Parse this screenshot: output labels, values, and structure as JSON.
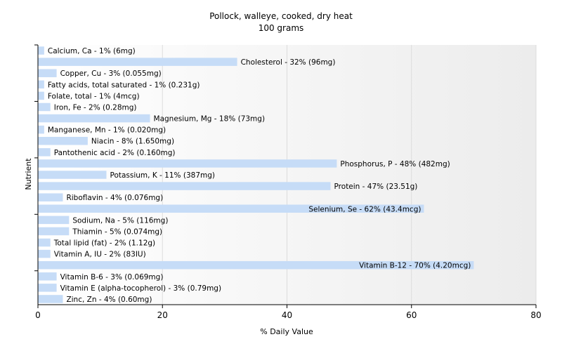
{
  "chart_data": {
    "type": "bar",
    "orientation": "horizontal",
    "title": "Pollock, walleye, cooked, dry heat",
    "subtitle": "100 grams",
    "xlabel": "% Daily Value",
    "ylabel": "Nutrient",
    "xlim": [
      0,
      80
    ],
    "xticks": [
      0,
      20,
      40,
      60,
      80
    ],
    "grid": true,
    "bar_color": "#c6dcf7",
    "categories": [
      "Calcium, Ca",
      "Cholesterol",
      "Copper, Cu",
      "Fatty acids, total saturated",
      "Folate, total",
      "Iron, Fe",
      "Magnesium, Mg",
      "Manganese, Mn",
      "Niacin",
      "Pantothenic acid",
      "Phosphorus, P",
      "Potassium, K",
      "Protein",
      "Riboflavin",
      "Selenium, Se",
      "Sodium, Na",
      "Thiamin",
      "Total lipid (fat)",
      "Vitamin A, IU",
      "Vitamin B-12",
      "Vitamin B-6",
      "Vitamin E (alpha-tocopherol)",
      "Zinc, Zn"
    ],
    "values": [
      1,
      32,
      3,
      1,
      1,
      2,
      18,
      1,
      8,
      2,
      48,
      11,
      47,
      4,
      62,
      5,
      5,
      2,
      2,
      70,
      3,
      3,
      4
    ],
    "labels": [
      "Calcium, Ca - 1% (6mg)",
      "Cholesterol - 32% (96mg)",
      "Copper, Cu - 3% (0.055mg)",
      "Fatty acids, total saturated - 1% (0.231g)",
      "Folate, total - 1% (4mcg)",
      "Iron, Fe - 2% (0.28mg)",
      "Magnesium, Mg - 18% (73mg)",
      "Manganese, Mn - 1% (0.020mg)",
      "Niacin - 8% (1.650mg)",
      "Pantothenic acid - 2% (0.160mg)",
      "Phosphorus, P - 48% (482mg)",
      "Potassium, K - 11% (387mg)",
      "Protein - 47% (23.51g)",
      "Riboflavin - 4% (0.076mg)",
      "Selenium, Se - 62% (43.4mcg)",
      "Sodium, Na - 5% (116mg)",
      "Thiamin - 5% (0.074mg)",
      "Total lipid (fat) - 2% (1.12g)",
      "Vitamin A, IU - 2% (83IU)",
      "Vitamin B-12 - 70% (4.20mcg)",
      "Vitamin B-6 - 3% (0.069mg)",
      "Vitamin E (alpha-tocopherol) - 3% (0.79mg)",
      "Zinc, Zn - 4% (0.60mg)"
    ]
  }
}
